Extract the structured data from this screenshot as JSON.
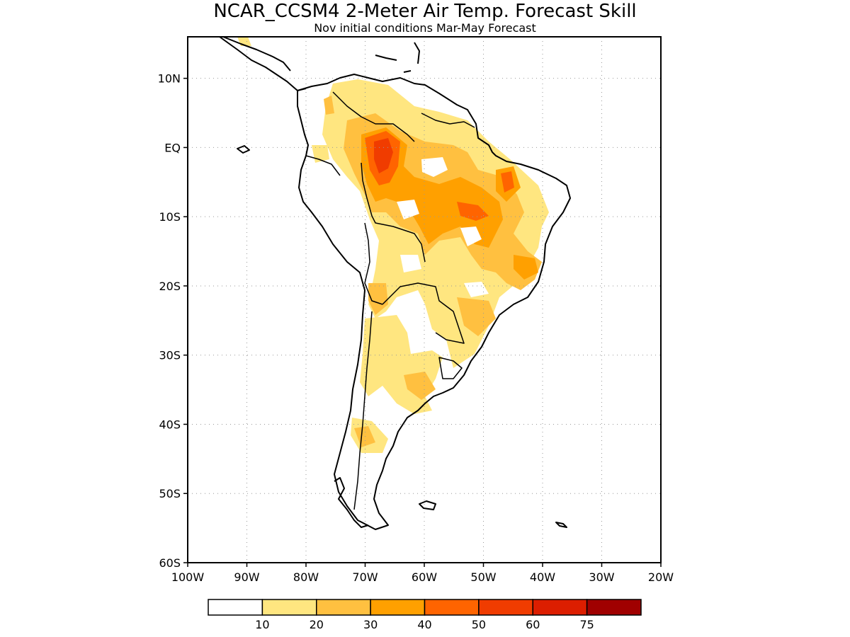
{
  "title": "NCAR_CCSM4 2-Meter Air Temp. Forecast Skill",
  "subtitle": "Nov initial conditions  Mar-May Forecast",
  "map": {
    "lon_range": [
      -100,
      -20
    ],
    "lat_range": [
      -60,
      16
    ],
    "lat_ticks": [
      {
        "value": 10,
        "label": "10N"
      },
      {
        "value": 0,
        "label": "EQ"
      },
      {
        "value": -10,
        "label": "10S"
      },
      {
        "value": -20,
        "label": "20S"
      },
      {
        "value": -30,
        "label": "30S"
      },
      {
        "value": -40,
        "label": "40S"
      },
      {
        "value": -50,
        "label": "50S"
      },
      {
        "value": -60,
        "label": "60S"
      }
    ],
    "lon_ticks": [
      {
        "value": -100,
        "label": "100W"
      },
      {
        "value": -90,
        "label": "90W"
      },
      {
        "value": -80,
        "label": "80W"
      },
      {
        "value": -70,
        "label": "70W"
      },
      {
        "value": -60,
        "label": "60W"
      },
      {
        "value": -50,
        "label": "50W"
      },
      {
        "value": -40,
        "label": "40W"
      },
      {
        "value": -30,
        "label": "30W"
      },
      {
        "value": -20,
        "label": "20W"
      }
    ],
    "grid": true
  },
  "colorbar": {
    "colors": [
      "#ffffff",
      "#ffe680",
      "#ffc040",
      "#ffa000",
      "#ff6400",
      "#f03c00",
      "#dc1e00",
      "#a00000"
    ],
    "labels": [
      "10",
      "20",
      "30",
      "40",
      "50",
      "60",
      "75"
    ]
  },
  "skill_levels": {
    "l1": "#ffe680",
    "l2": "#ffc040",
    "l3": "#ffa000",
    "l4": "#ff6400",
    "l5": "#f03c00"
  }
}
